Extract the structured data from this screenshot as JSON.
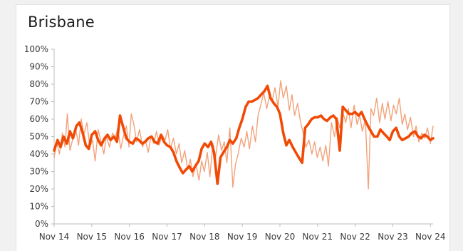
{
  "chart_data": {
    "type": "line",
    "title": "Brisbane",
    "xlabel": "",
    "ylabel": "",
    "ylim": [
      0,
      100
    ],
    "y_ticks": [
      "0%",
      "10%",
      "20%",
      "30%",
      "40%",
      "50%",
      "60%",
      "70%",
      "80%",
      "90%",
      "100%"
    ],
    "x_ticks": [
      "Nov 14",
      "Nov 15",
      "Nov 16",
      "Nov 17",
      "Nov 18",
      "Nov 19",
      "Nov 20",
      "Nov 21",
      "Nov 22",
      "Nov 23",
      "Nov 24"
    ],
    "grid": false,
    "legend": "none",
    "colors": {
      "raw": "#f2a27a",
      "smoothed": "#f04a06",
      "axis": "#bdbdbd"
    },
    "series": [
      {
        "style": "raw",
        "x": [
          2014.83,
          2014.9,
          2014.97,
          2015.05,
          2015.12,
          2015.18,
          2015.25,
          2015.33,
          2015.4,
          2015.48,
          2015.55,
          2015.62,
          2015.7,
          2015.78,
          2015.85,
          2015.92,
          2016.0,
          2016.08,
          2016.15,
          2016.22,
          2016.3,
          2016.38,
          2016.45,
          2016.52,
          2016.6,
          2016.68,
          2016.75,
          2016.82,
          2016.88,
          2016.95,
          2017.02,
          2017.1,
          2017.18,
          2017.25,
          2017.33,
          2017.4,
          2017.48,
          2017.55,
          2017.62,
          2017.7,
          2017.78,
          2017.85,
          2017.92,
          2018.0,
          2018.08,
          2018.15,
          2018.22,
          2018.3,
          2018.38,
          2018.45,
          2018.52,
          2018.6,
          2018.68,
          2018.75,
          2018.82,
          2018.9,
          2018.97,
          2019.05,
          2019.12,
          2019.2,
          2019.28,
          2019.35,
          2019.42,
          2019.5,
          2019.58,
          2019.65,
          2019.72,
          2019.8,
          2019.88,
          2019.95,
          2020.02,
          2020.1,
          2020.18,
          2020.25,
          2020.32,
          2020.4,
          2020.48,
          2020.55,
          2020.62,
          2020.7,
          2020.78,
          2020.85,
          2020.92,
          2021.0,
          2021.08,
          2021.15,
          2021.22,
          2021.3,
          2021.38,
          2021.45,
          2021.52,
          2021.6,
          2021.68,
          2021.75,
          2021.82,
          2021.9,
          2021.97,
          2022.05,
          2022.12,
          2022.2,
          2022.28,
          2022.35,
          2022.42,
          2022.5,
          2022.58,
          2022.65,
          2022.72,
          2022.8,
          2022.88,
          2022.95,
          2023.02,
          2023.1,
          2023.18,
          2023.25,
          2023.32,
          2023.4,
          2023.48,
          2023.55,
          2023.62,
          2023.7,
          2023.78,
          2023.85,
          2023.92,
          2024.0,
          2024.08,
          2024.15,
          2024.22,
          2024.3,
          2024.38,
          2024.45,
          2024.52,
          2024.6,
          2024.68,
          2024.75,
          2024.83,
          2024.9
        ],
        "values": [
          38,
          47,
          40,
          52,
          44,
          63,
          42,
          49,
          55,
          45,
          60,
          51,
          58,
          44,
          48,
          36,
          54,
          47,
          40,
          50,
          44,
          52,
          49,
          55,
          43,
          51,
          56,
          44,
          63,
          57,
          47,
          54,
          44,
          48,
          41,
          50,
          46,
          53,
          45,
          51,
          48,
          54,
          43,
          49,
          40,
          46,
          35,
          42,
          31,
          37,
          27,
          34,
          25,
          36,
          30,
          41,
          27,
          46,
          38,
          51,
          42,
          47,
          35,
          55,
          21,
          34,
          40,
          49,
          44,
          53,
          43,
          56,
          47,
          62,
          68,
          75,
          66,
          73,
          70,
          78,
          67,
          82,
          72,
          79,
          65,
          74,
          62,
          69,
          58,
          52,
          44,
          48,
          40,
          47,
          38,
          44,
          36,
          45,
          33,
          58,
          50,
          61,
          55,
          64,
          58,
          66,
          55,
          68,
          57,
          62,
          53,
          60,
          20,
          66,
          62,
          72,
          58,
          69,
          60,
          70,
          59,
          68,
          63,
          72,
          57,
          63,
          54,
          61,
          50,
          56,
          47,
          52,
          49,
          55,
          46,
          56
        ]
      },
      {
        "style": "smoothed",
        "x": [
          2014.83,
          2014.92,
          2015.0,
          2015.08,
          2015.17,
          2015.25,
          2015.33,
          2015.42,
          2015.5,
          2015.58,
          2015.67,
          2015.75,
          2015.83,
          2015.92,
          2016.0,
          2016.08,
          2016.17,
          2016.25,
          2016.33,
          2016.42,
          2016.5,
          2016.58,
          2016.67,
          2016.75,
          2016.83,
          2016.92,
          2017.0,
          2017.08,
          2017.17,
          2017.25,
          2017.33,
          2017.42,
          2017.5,
          2017.58,
          2017.67,
          2017.75,
          2017.83,
          2017.92,
          2018.0,
          2018.08,
          2018.17,
          2018.25,
          2018.33,
          2018.42,
          2018.5,
          2018.58,
          2018.67,
          2018.75,
          2018.83,
          2018.92,
          2019.0,
          2019.08,
          2019.17,
          2019.25,
          2019.33,
          2019.42,
          2019.5,
          2019.58,
          2019.67,
          2019.75,
          2019.83,
          2019.92,
          2020.0,
          2020.08,
          2020.17,
          2020.25,
          2020.33,
          2020.42,
          2020.5,
          2020.58,
          2020.67,
          2020.75,
          2020.83,
          2020.92,
          2021.0,
          2021.08,
          2021.17,
          2021.25,
          2021.33,
          2021.42,
          2021.5,
          2021.58,
          2021.67,
          2021.75,
          2021.83,
          2021.92,
          2022.0,
          2022.08,
          2022.17,
          2022.25,
          2022.33,
          2022.42,
          2022.5,
          2022.58,
          2022.67,
          2022.75,
          2022.83,
          2022.92,
          2023.0,
          2023.08,
          2023.17,
          2023.25,
          2023.33,
          2023.42,
          2023.5,
          2023.58,
          2023.67,
          2023.75,
          2023.83,
          2023.92,
          2024.0,
          2024.08,
          2024.17,
          2024.25,
          2024.33,
          2024.42,
          2024.5,
          2024.58,
          2024.67,
          2024.75,
          2024.83,
          2024.9
        ],
        "values": [
          42,
          48,
          44,
          50,
          46,
          53,
          49,
          56,
          58,
          53,
          45,
          43,
          51,
          53,
          48,
          45,
          49,
          51,
          48,
          50,
          47,
          62,
          55,
          49,
          47,
          46,
          49,
          48,
          46,
          47,
          49,
          50,
          47,
          46,
          51,
          47,
          45,
          44,
          41,
          36,
          32,
          29,
          31,
          33,
          30,
          33,
          36,
          43,
          46,
          44,
          47,
          41,
          23,
          38,
          41,
          44,
          48,
          46,
          49,
          55,
          60,
          67,
          70,
          70,
          71,
          72,
          74,
          76,
          79,
          72,
          69,
          67,
          63,
          52,
          45,
          48,
          44,
          41,
          38,
          35,
          55,
          57,
          60,
          61,
          61,
          62,
          60,
          59,
          61,
          62,
          60,
          42,
          67,
          65,
          63,
          63,
          64,
          62,
          64,
          60,
          56,
          53,
          50,
          50,
          54,
          52,
          50,
          48,
          53,
          55,
          50,
          48,
          49,
          50,
          52,
          53,
          50,
          49,
          51,
          50,
          48,
          49
        ]
      }
    ]
  }
}
